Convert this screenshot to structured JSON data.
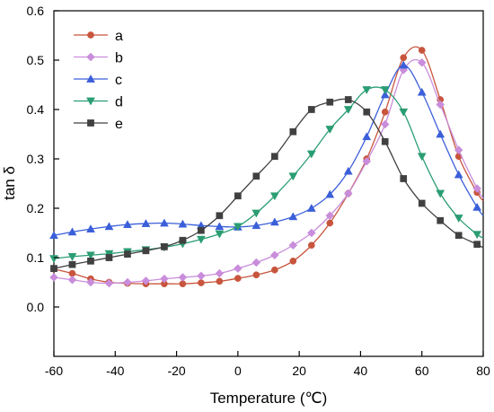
{
  "chart_data": {
    "type": "line",
    "title": "",
    "xlabel": "Temperature (℃)",
    "ylabel": "tan δ",
    "xlim": [
      -60,
      80
    ],
    "ylim": [
      -0.1,
      0.6
    ],
    "xticks": [
      -60,
      -40,
      -20,
      0,
      20,
      40,
      60,
      80
    ],
    "yticks": [
      0.0,
      0.1,
      0.2,
      0.3,
      0.4,
      0.5,
      0.6
    ],
    "xtick_labels": [
      "-60",
      "-40",
      "-20",
      "0",
      "20",
      "40",
      "60",
      "80"
    ],
    "ytick_labels": [
      "0.0",
      "0.1",
      "0.2",
      "0.3",
      "0.4",
      "0.5",
      "0.6"
    ],
    "grid": false,
    "legend_position": "top-left",
    "series": [
      {
        "name": "a",
        "color": "#c8553d",
        "marker": "circle",
        "x": [
          -60,
          -54,
          -48,
          -42,
          -36,
          -30,
          -24,
          -18,
          -12,
          -6,
          0,
          6,
          12,
          18,
          24,
          30,
          36,
          42,
          48,
          54,
          60,
          66,
          72,
          78,
          80
        ],
        "y": [
          0.077,
          0.068,
          0.057,
          0.05,
          0.048,
          0.047,
          0.047,
          0.047,
          0.049,
          0.052,
          0.058,
          0.065,
          0.075,
          0.093,
          0.125,
          0.17,
          0.23,
          0.3,
          0.395,
          0.505,
          0.52,
          0.42,
          0.305,
          0.232,
          0.215
        ]
      },
      {
        "name": "b",
        "color": "#c98ddb",
        "marker": "diamond",
        "x": [
          -60,
          -54,
          -48,
          -42,
          -36,
          -30,
          -24,
          -18,
          -12,
          -6,
          0,
          6,
          12,
          18,
          24,
          30,
          36,
          42,
          48,
          54,
          60,
          66,
          72,
          78,
          80
        ],
        "y": [
          0.06,
          0.055,
          0.05,
          0.048,
          0.05,
          0.053,
          0.057,
          0.06,
          0.063,
          0.068,
          0.078,
          0.09,
          0.105,
          0.125,
          0.15,
          0.185,
          0.23,
          0.295,
          0.37,
          0.48,
          0.495,
          0.41,
          0.318,
          0.24,
          0.22
        ]
      },
      {
        "name": "c",
        "color": "#3b5fd9",
        "marker": "triangle-up",
        "x": [
          -60,
          -54,
          -48,
          -42,
          -36,
          -30,
          -24,
          -18,
          -12,
          -6,
          0,
          6,
          12,
          18,
          24,
          30,
          36,
          42,
          48,
          54,
          60,
          66,
          72,
          78,
          80
        ],
        "y": [
          0.145,
          0.152,
          0.158,
          0.163,
          0.167,
          0.169,
          0.17,
          0.168,
          0.165,
          0.163,
          0.162,
          0.165,
          0.172,
          0.183,
          0.2,
          0.228,
          0.275,
          0.345,
          0.43,
          0.49,
          0.435,
          0.35,
          0.268,
          0.202,
          0.185
        ]
      },
      {
        "name": "d",
        "color": "#2a9d72",
        "marker": "triangle-down",
        "x": [
          -60,
          -54,
          -48,
          -42,
          -36,
          -30,
          -24,
          -18,
          -12,
          -6,
          0,
          6,
          12,
          18,
          24,
          30,
          36,
          42,
          48,
          54,
          60,
          66,
          72,
          78,
          80
        ],
        "y": [
          0.098,
          0.102,
          0.105,
          0.108,
          0.112,
          0.116,
          0.121,
          0.128,
          0.137,
          0.148,
          0.163,
          0.19,
          0.225,
          0.265,
          0.31,
          0.36,
          0.4,
          0.44,
          0.44,
          0.395,
          0.305,
          0.23,
          0.18,
          0.147,
          0.14
        ]
      },
      {
        "name": "e",
        "color": "#404040",
        "marker": "square",
        "x": [
          -60,
          -54,
          -48,
          -42,
          -36,
          -30,
          -24,
          -18,
          -12,
          -6,
          0,
          6,
          12,
          18,
          24,
          30,
          36,
          42,
          48,
          54,
          60,
          66,
          72,
          78,
          80
        ],
        "y": [
          0.078,
          0.086,
          0.093,
          0.1,
          0.107,
          0.114,
          0.122,
          0.135,
          0.155,
          0.185,
          0.225,
          0.265,
          0.305,
          0.355,
          0.4,
          0.415,
          0.42,
          0.395,
          0.335,
          0.26,
          0.21,
          0.175,
          0.145,
          0.127,
          0.12
        ]
      }
    ]
  }
}
